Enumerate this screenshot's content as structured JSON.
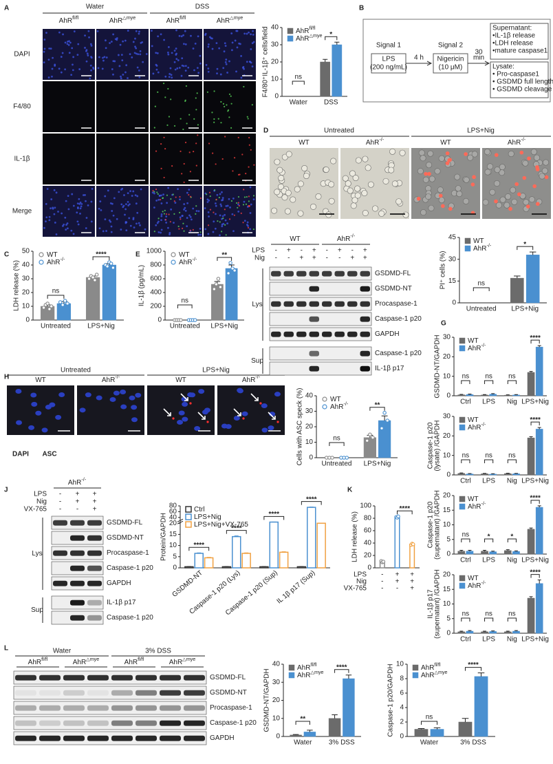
{
  "figure": {
    "panel_labels": [
      "A",
      "B",
      "C",
      "D",
      "E",
      "F",
      "G",
      "H",
      "I",
      "J",
      "K",
      "L"
    ]
  },
  "panel_a": {
    "columns": [
      "Water",
      "DSS"
    ],
    "genotypes": [
      {
        "name": "AhR",
        "sup": "fl/fl"
      },
      {
        "name": "AhR",
        "sup": "△mye"
      },
      {
        "name": "AhR",
        "sup": "fl/fl"
      },
      {
        "name": "AhR",
        "sup": "△mye"
      }
    ],
    "rows": [
      "DAPI",
      "F4/80",
      "IL-1β",
      "Merge"
    ]
  },
  "panel_b": {
    "signal1": "Signal 1",
    "signal1_box": [
      "LPS",
      "(200 ng/mL)"
    ],
    "time1": "4 h",
    "signal2": "Signal 2",
    "signal2_box": [
      "Nigericin",
      "(10 μM)"
    ],
    "time2": [
      "30",
      "min"
    ],
    "supernatant": [
      "Supernatant:",
      "•IL-1β release",
      "•LDH release",
      "•mature caspase1"
    ],
    "lysate": [
      "Lysate:",
      "• Pro-caspase1",
      "• GSDMD full length",
      "• GSDMD cleavage"
    ]
  },
  "panel_d": {
    "groups": [
      "Untreated",
      "LPS+Nig"
    ],
    "genotypes": [
      {
        "name": "WT"
      },
      {
        "name": "AhR",
        "sup": "-/-"
      },
      {
        "name": "WT"
      },
      {
        "name": "AhR",
        "sup": "-/-"
      }
    ]
  },
  "panel_f": {
    "genotypes": [
      {
        "name": "WT"
      },
      {
        "name": "AhR",
        "sup": "-/-"
      }
    ],
    "treatments": [
      {
        "label": "LPS",
        "marks": [
          "-",
          "+",
          "-",
          "+",
          "-",
          "+",
          "-",
          "+"
        ]
      },
      {
        "label": "Nig",
        "marks": [
          "-",
          "-",
          "+",
          "+",
          "-",
          "-",
          "+",
          "+"
        ]
      }
    ],
    "fractions": [
      "Lys",
      "Sup"
    ],
    "bands": [
      "GSDMD-FL",
      "GSDMD-NT",
      "Procaspase-1",
      "Caspase-1 p20",
      "GAPDH",
      "Caspase-1 p20",
      "IL-1β p17"
    ]
  },
  "panel_h": {
    "groups": [
      "Untreated",
      "LPS+Nig"
    ],
    "genotypes": [
      {
        "name": "WT"
      },
      {
        "name": "AhR",
        "sup": "-/-"
      },
      {
        "name": "WT"
      },
      {
        "name": "AhR",
        "sup": "-/-"
      }
    ],
    "stains": [
      "DAPI",
      "ASC"
    ]
  },
  "panel_j": {
    "genotype": {
      "name": "AhR",
      "sup": "-/-"
    },
    "treatments": [
      {
        "label": "LPS",
        "marks": [
          "-",
          "+",
          "+"
        ]
      },
      {
        "label": "Nig",
        "marks": [
          "-",
          "+",
          "+"
        ]
      },
      {
        "label": "VX-765",
        "marks": [
          "-",
          "-",
          "+"
        ]
      }
    ],
    "fractions": [
      "Lys",
      "Sup"
    ],
    "bands": [
      "GSDMD-FL",
      "GSDMD-NT",
      "Procaspase-1",
      "Caspase-1 p20",
      "GAPDH",
      "IL-1β p17",
      "Caspase-1 p20"
    ]
  },
  "panel_l": {
    "groups": [
      "Water",
      "3% DSS"
    ],
    "genotypes": [
      {
        "name": "AhR",
        "sup": "fl/fl"
      },
      {
        "name": "AhR",
        "sup": "△mye"
      },
      {
        "name": "AhR",
        "sup": "fl/fl"
      },
      {
        "name": "AhR",
        "sup": "△mye"
      }
    ],
    "bands": [
      "GSDMD-FL",
      "GSDMD-NT",
      "Procaspase-1",
      "Caspase-1 p20",
      "GAPDH"
    ]
  },
  "chart_data": [
    {
      "type": "bar",
      "ylabel": "F4/80⁺IL-1β⁺ cells/field",
      "categories": [
        "Water",
        "DSS"
      ],
      "series": [
        {
          "name": "AhR",
          "sup": "fl/fl",
          "color": "#6b6b6b",
          "values": [
            0,
            20
          ],
          "errors": [
            0,
            1.5
          ]
        },
        {
          "name": "AhR",
          "sup": "△mye",
          "color": "#4a90d0",
          "values": [
            0,
            30
          ],
          "errors": [
            0,
            1.5
          ]
        }
      ],
      "ylim": [
        0,
        40
      ],
      "yticks": [
        0,
        10,
        20,
        30,
        40
      ],
      "significance": [
        "ns",
        "*"
      ],
      "legend": "upper left"
    },
    {
      "type": "bar",
      "ylabel": "LDH release (%)",
      "categories": [
        "Untreated",
        "LPS+Nig"
      ],
      "series": [
        {
          "name": "WT",
          "color": "#8a8a8a",
          "values": [
            10,
            31
          ],
          "errors": [
            1,
            1
          ],
          "points": [
            [
              9,
              11,
              12,
              8,
              10
            ],
            [
              30,
              32,
              31,
              29,
              33
            ]
          ]
        },
        {
          "name": "AhR",
          "sup": "-/-",
          "color": "#4a90d0",
          "values": [
            12,
            40
          ],
          "errors": [
            1.5,
            1
          ],
          "points": [
            [
              13,
              11,
              14,
              12
            ],
            [
              40,
              39,
              42,
              41,
              38
            ]
          ]
        }
      ],
      "ylim": [
        0,
        50
      ],
      "yticks": [
        0,
        10,
        20,
        30,
        40,
        50
      ],
      "significance": [
        "ns",
        "****"
      ],
      "legend": "upper left"
    },
    {
      "type": "bar",
      "ylabel": "IL-1β (pg/mL)",
      "categories": [
        "Untreated",
        "LPS+Nig"
      ],
      "series": [
        {
          "name": "WT",
          "color": "#8a8a8a",
          "values": [
            0,
            520
          ],
          "errors": [
            0,
            40
          ],
          "points": [
            [
              0,
              0,
              0,
              0
            ],
            [
              450,
              520,
              600,
              480
            ]
          ]
        },
        {
          "name": "AhR",
          "sup": "-/-",
          "color": "#4a90d0",
          "values": [
            0,
            750
          ],
          "errors": [
            0,
            50
          ],
          "points": [
            [
              0,
              0,
              0,
              0
            ],
            [
              680,
              830,
              750,
              720
            ]
          ]
        }
      ],
      "ylim": [
        0,
        1000
      ],
      "yticks": [
        0,
        200,
        400,
        600,
        800,
        1000
      ],
      "significance": [
        "ns",
        "**"
      ],
      "legend": "upper left"
    },
    {
      "type": "bar",
      "ylabel": "PI⁺ cells (%)",
      "categories": [
        "Untreated",
        "LPS+Nig"
      ],
      "series": [
        {
          "name": "WT",
          "color": "#6b6b6b",
          "values": [
            0,
            17
          ],
          "errors": [
            0,
            1.5
          ]
        },
        {
          "name": "AhR",
          "sup": "-/-",
          "color": "#4a90d0",
          "values": [
            0,
            33
          ],
          "errors": [
            0,
            2
          ]
        }
      ],
      "ylim": [
        0,
        45
      ],
      "yticks": [
        0,
        15,
        30,
        45
      ],
      "significance": [
        "ns",
        "*"
      ],
      "legend": "upper left"
    },
    {
      "type": "bar",
      "ylabel": "GSDMD-NT/GAPDH",
      "categories": [
        "Ctrl",
        "LPS",
        "Nig",
        "LPS+Nig"
      ],
      "series": [
        {
          "name": "WT",
          "color": "#6b6b6b",
          "values": [
            0.5,
            0.4,
            0.3,
            12
          ],
          "errors": [
            0.2,
            0.2,
            0.2,
            0.5
          ]
        },
        {
          "name": "AhR",
          "sup": "-/-",
          "color": "#4a90d0",
          "values": [
            0.6,
            0.8,
            0.4,
            25
          ],
          "errors": [
            0.3,
            0.3,
            0.2,
            0.7
          ]
        }
      ],
      "ylim": [
        0,
        30
      ],
      "yticks": [
        0,
        10,
        20,
        30
      ],
      "significance": [
        "ns",
        "ns",
        "ns",
        "****"
      ],
      "legend": "upper left"
    },
    {
      "type": "bar",
      "ylabel": [
        "Caspase-1 p20",
        "(lysate) /GAPDH"
      ],
      "categories": [
        "Ctrl",
        "LPS",
        "Nig",
        "LPS+Nig"
      ],
      "series": [
        {
          "name": "WT",
          "color": "#6b6b6b",
          "values": [
            0.8,
            0.6,
            0.7,
            19
          ],
          "errors": [
            0.2,
            0.2,
            0.2,
            0.6
          ]
        },
        {
          "name": "AhR",
          "sup": "-/-",
          "color": "#4a90d0",
          "values": [
            0.5,
            0.4,
            0.6,
            23.5
          ],
          "errors": [
            0.2,
            0.2,
            0.2,
            0.8
          ]
        }
      ],
      "ylim": [
        0,
        30
      ],
      "yticks": [
        0,
        10,
        20,
        30
      ],
      "significance": [
        "ns",
        "ns",
        "ns",
        "****"
      ],
      "legend": "upper left"
    },
    {
      "type": "bar",
      "ylabel": "Cells with ASC speck (%)",
      "categories": [
        "Untreated",
        "LPS+Nig"
      ],
      "series": [
        {
          "name": "WT",
          "color": "#8a8a8a",
          "values": [
            0,
            13
          ],
          "errors": [
            0,
            1.5
          ],
          "points": [
            [
              0,
              0,
              0
            ],
            [
              11,
              15,
              13
            ]
          ]
        },
        {
          "name": "AhR",
          "sup": "-/-",
          "color": "#4a90d0",
          "values": [
            0,
            24
          ],
          "errors": [
            0,
            3
          ],
          "points": [
            [
              0,
              0,
              0
            ],
            [
              19,
              29,
              24
            ]
          ]
        }
      ],
      "ylim": [
        0,
        40
      ],
      "yticks": [
        0,
        10,
        20,
        30,
        40
      ],
      "significance": [
        "ns",
        "**"
      ],
      "legend": "upper left"
    },
    {
      "type": "bar",
      "ylabel": [
        "Caspase-1 p20",
        "(supernatant) /GAPDH"
      ],
      "categories": [
        "Ctrl",
        "LPS",
        "Nig",
        "LPS+Nig"
      ],
      "series": [
        {
          "name": "WT",
          "color": "#6b6b6b",
          "values": [
            1,
            1,
            1.2,
            8.5
          ],
          "errors": [
            0.3,
            0.3,
            0.3,
            0.4
          ]
        },
        {
          "name": "AhR",
          "sup": "-/-",
          "color": "#4a90d0",
          "values": [
            1,
            0.8,
            0.9,
            16
          ],
          "errors": [
            0.3,
            0.2,
            0.2,
            0.5
          ]
        }
      ],
      "ylim": [
        0,
        20
      ],
      "yticks": [
        0,
        5,
        10,
        15,
        20
      ],
      "significance": [
        "ns",
        "*",
        "*",
        "****"
      ],
      "legend": "upper left"
    },
    {
      "type": "bar",
      "ylabel": "Protein/GAPDH",
      "categories": [
        "GSDMD-NT",
        "Caspase-1 p20 (Lys)",
        "Caspase-1 p20 (Sup)",
        "IL 1β p17 (Sup)"
      ],
      "series": [
        {
          "name": "Ctrl",
          "color": "#333333",
          "values": [
            0.5,
            0.5,
            0.5,
            0.5
          ],
          "errors": [
            0.1,
            0.1,
            0.1,
            0.1
          ]
        },
        {
          "name": "LPS+Nig",
          "color": "#4a90d0",
          "values": [
            6.5,
            14,
            24,
            75
          ],
          "errors": [
            0.2,
            0.3,
            0.4,
            1
          ]
        },
        {
          "name": "LPS+Nig+VX-765",
          "color": "#f0a040",
          "values": [
            4.5,
            6.5,
            7,
            20
          ],
          "errors": [
            0.2,
            0.2,
            0.2,
            0.5
          ]
        }
      ],
      "bar_style": "outline",
      "ylim": [
        0,
        80
      ],
      "yticks": [
        0,
        5,
        10,
        15,
        20,
        40,
        60,
        80
      ],
      "ybreak": 20,
      "significance": [
        "****",
        "****",
        "****",
        "****"
      ],
      "legend": "upper left"
    },
    {
      "type": "bar",
      "ylabel": "LDH release (%)",
      "categories": [
        null,
        null,
        null
      ],
      "series": [
        {
          "colors": [
            "#888888",
            "#4a90d0",
            "#f0a040"
          ],
          "values": [
            10,
            82,
            38
          ],
          "errors": [
            1,
            1,
            1
          ],
          "points": [
            [
              11,
              9,
              10
            ],
            [
              82,
              81,
              83
            ],
            [
              37,
              39,
              38
            ]
          ]
        }
      ],
      "bar_style": "outline",
      "ylim": [
        0,
        100
      ],
      "yticks": [
        0,
        20,
        40,
        60,
        80,
        100
      ],
      "significance": [
        null,
        null,
        "****"
      ],
      "condition_table": [
        {
          "label": "LPS",
          "marks": [
            "-",
            "+",
            "+"
          ]
        },
        {
          "label": "Nig",
          "marks": [
            "-",
            "+",
            "+"
          ]
        },
        {
          "label": "VX-765",
          "marks": [
            "-",
            "-",
            "+"
          ]
        }
      ]
    },
    {
      "type": "bar",
      "ylabel": [
        "IL-1β p17",
        "(supernatant) /GAPDH"
      ],
      "categories": [
        "Ctrl",
        "LPS",
        "Nig",
        "LPS+Nig"
      ],
      "series": [
        {
          "name": "WT",
          "color": "#6b6b6b",
          "values": [
            0.5,
            0.5,
            0.5,
            12
          ],
          "errors": [
            0.2,
            0.2,
            0.2,
            0.5
          ]
        },
        {
          "name": "AhR",
          "sup": "-/-",
          "color": "#4a90d0",
          "values": [
            0.7,
            0.6,
            0.7,
            17
          ],
          "errors": [
            0.2,
            0.2,
            0.2,
            1.2
          ]
        }
      ],
      "ylim": [
        0,
        20
      ],
      "yticks": [
        0,
        5,
        10,
        15,
        20
      ],
      "significance": [
        "ns",
        "ns",
        "ns",
        "****"
      ],
      "legend": "upper left"
    },
    {
      "type": "bar",
      "ylabel": "GSDMD-NT/GAPDH",
      "categories": [
        "Water",
        "3% DSS"
      ],
      "series": [
        {
          "name": "AhR",
          "sup": "fl/fl",
          "color": "#6b6b6b",
          "values": [
            0.8,
            10
          ],
          "errors": [
            0.3,
            2
          ]
        },
        {
          "name": "AhR",
          "sup": "△mye",
          "color": "#4a90d0",
          "values": [
            2.5,
            32
          ],
          "errors": [
            1,
            2
          ]
        }
      ],
      "ylim": [
        0,
        40
      ],
      "yticks": [
        0,
        10,
        20,
        30,
        40
      ],
      "significance": [
        "**",
        "****"
      ],
      "legend": "upper left"
    },
    {
      "type": "bar",
      "ylabel": "Caspase-1 p20/GAPDH",
      "categories": [
        "Water",
        "3% DSS"
      ],
      "series": [
        {
          "name": "AhR",
          "sup": "fl/fl",
          "color": "#6b6b6b",
          "values": [
            1,
            2
          ],
          "errors": [
            0.1,
            0.5
          ]
        },
        {
          "name": "AhR",
          "sup": "△mye",
          "color": "#4a90d0",
          "values": [
            1,
            8.3
          ],
          "errors": [
            0.2,
            0.5
          ]
        }
      ],
      "ylim": [
        0,
        10
      ],
      "yticks": [
        0,
        2,
        4,
        6,
        8,
        10
      ],
      "significance": [
        "ns",
        "****"
      ],
      "legend": "upper left"
    }
  ]
}
